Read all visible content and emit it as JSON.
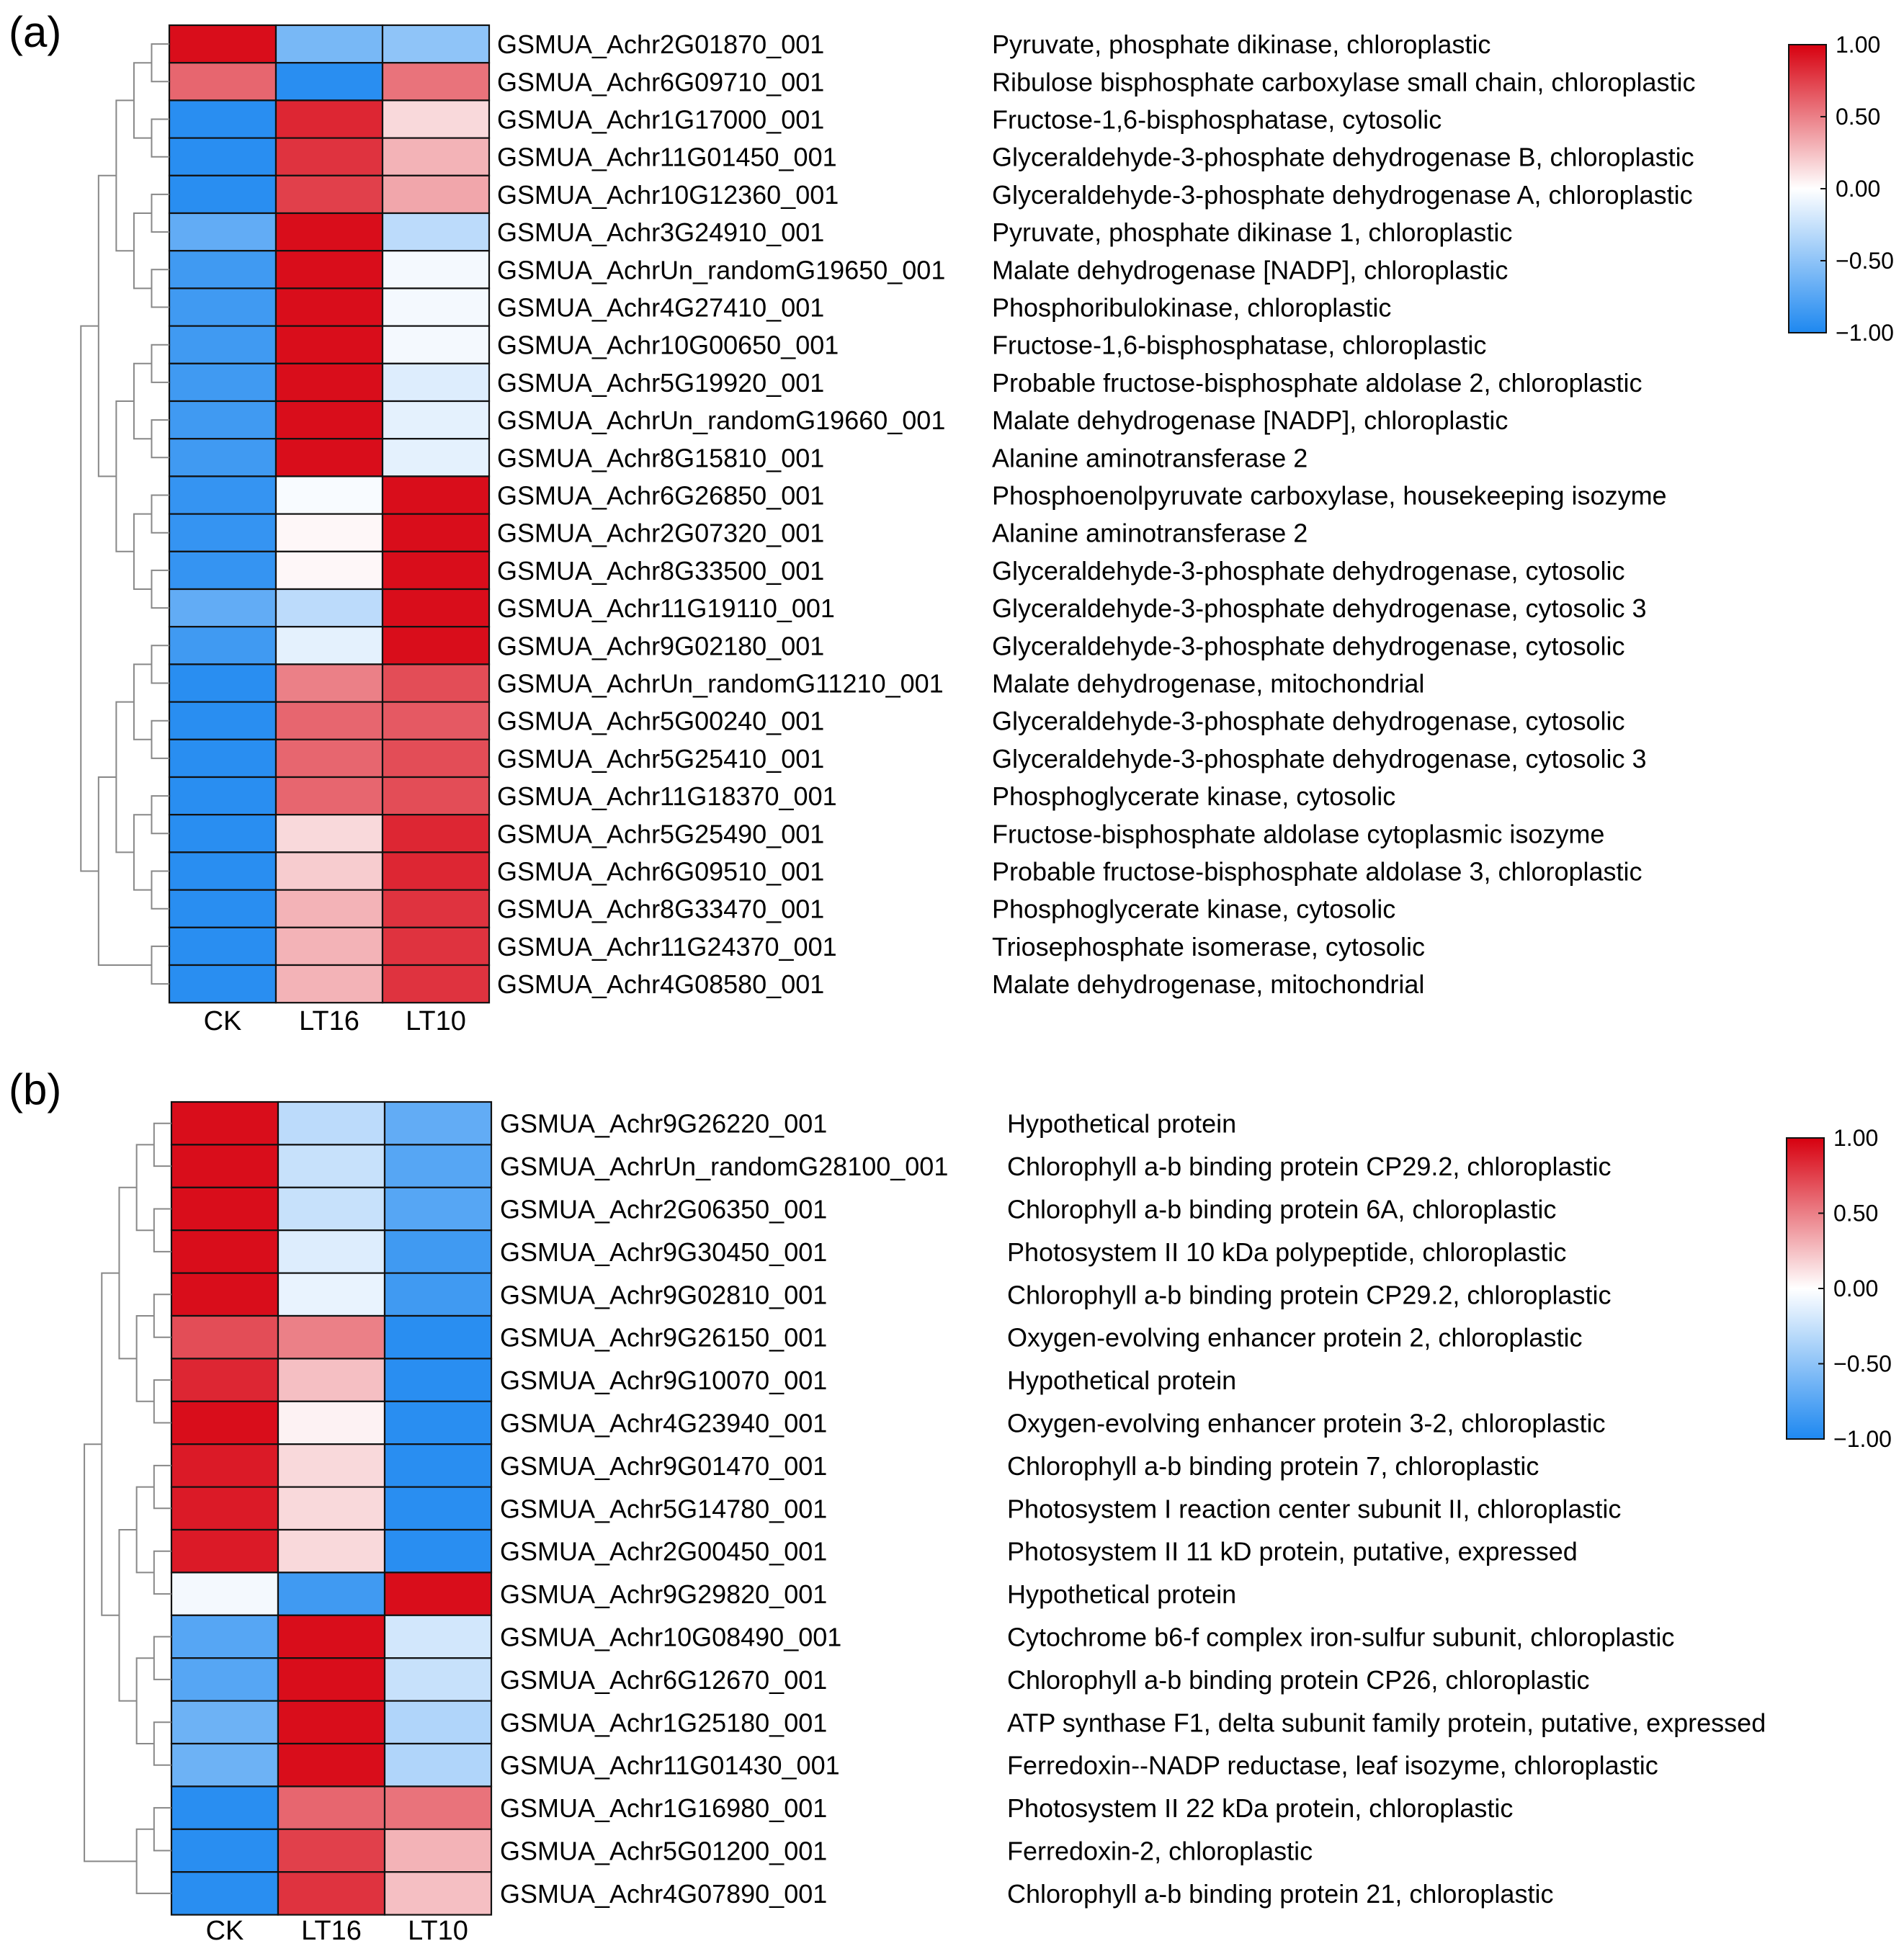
{
  "panels": [
    {
      "label": "(a)",
      "chart_data": {
        "type": "heatmap",
        "columns": [
          "CK",
          "LT16",
          "LT10"
        ],
        "rows": [
          {
            "gene": "GSMUA_Achr2G01870_001",
            "desc": "Pyruvate, phosphate dikinase, chloroplastic",
            "values": [
              0.95,
              -0.6,
              -0.5
            ]
          },
          {
            "gene": "GSMUA_Achr6G09710_001",
            "desc": "Ribulose bisphosphate carboxylase small chain, chloroplastic",
            "values": [
              0.6,
              -0.95,
              0.55
            ]
          },
          {
            "gene": "GSMUA_Achr1G17000_001",
            "desc": "Fructose-1,6-bisphosphatase, cytosolic",
            "values": [
              -0.95,
              0.85,
              0.15
            ]
          },
          {
            "gene": "GSMUA_Achr11G01450_001",
            "desc": "Glyceraldehyde-3-phosphate dehydrogenase B, chloroplastic",
            "values": [
              -0.95,
              0.8,
              0.3
            ]
          },
          {
            "gene": "GSMUA_Achr10G12360_001",
            "desc": "Glyceraldehyde-3-phosphate dehydrogenase A, chloroplastic",
            "values": [
              -0.95,
              0.75,
              0.35
            ]
          },
          {
            "gene": "GSMUA_Achr3G24910_001",
            "desc": "Pyruvate, phosphate dikinase 1, chloroplastic",
            "values": [
              -0.7,
              0.95,
              -0.3
            ]
          },
          {
            "gene": "GSMUA_AchrUn_randomG19650_001",
            "desc": "Malate dehydrogenase [NADP], chloroplastic",
            "values": [
              -0.85,
              0.95,
              -0.05
            ]
          },
          {
            "gene": "GSMUA_Achr4G27410_001",
            "desc": "Phosphoribulokinase, chloroplastic",
            "values": [
              -0.85,
              0.95,
              -0.05
            ]
          },
          {
            "gene": "GSMUA_Achr10G00650_001",
            "desc": "Fructose-1,6-bisphosphatase, chloroplastic",
            "values": [
              -0.85,
              0.95,
              -0.05
            ]
          },
          {
            "gene": "GSMUA_Achr5G19920_001",
            "desc": "Probable fructose-bisphosphate aldolase 2, chloroplastic",
            "values": [
              -0.85,
              0.95,
              -0.15
            ]
          },
          {
            "gene": "GSMUA_AchrUn_randomG19660_001",
            "desc": "Malate dehydrogenase [NADP], chloroplastic",
            "values": [
              -0.85,
              0.95,
              -0.12
            ]
          },
          {
            "gene": "GSMUA_Achr8G15810_001",
            "desc": "Alanine aminotransferase 2",
            "values": [
              -0.85,
              0.95,
              -0.12
            ]
          },
          {
            "gene": "GSMUA_Achr6G26850_001",
            "desc": "Phosphoenolpyruvate carboxylase, housekeeping isozyme",
            "values": [
              -0.9,
              -0.03,
              0.95
            ]
          },
          {
            "gene": "GSMUA_Achr2G07320_001",
            "desc": "Alanine aminotransferase 2",
            "values": [
              -0.9,
              0.03,
              0.95
            ]
          },
          {
            "gene": "GSMUA_Achr8G33500_001",
            "desc": "Glyceraldehyde-3-phosphate dehydrogenase, cytosolic",
            "values": [
              -0.9,
              0.03,
              0.95
            ]
          },
          {
            "gene": "GSMUA_Achr11G19110_001",
            "desc": "Glyceraldehyde-3-phosphate dehydrogenase, cytosolic 3",
            "values": [
              -0.7,
              -0.3,
              0.95
            ]
          },
          {
            "gene": "GSMUA_Achr9G02180_001",
            "desc": "Glyceraldehyde-3-phosphate dehydrogenase, cytosolic",
            "values": [
              -0.85,
              -0.12,
              0.95
            ]
          },
          {
            "gene": "GSMUA_AchrUn_randomG11210_001",
            "desc": "Malate dehydrogenase, mitochondrial",
            "values": [
              -0.95,
              0.5,
              0.7
            ]
          },
          {
            "gene": "GSMUA_Achr5G00240_001",
            "desc": "Glyceraldehyde-3-phosphate dehydrogenase, cytosolic",
            "values": [
              -0.95,
              0.6,
              0.65
            ]
          },
          {
            "gene": "GSMUA_Achr5G25410_001",
            "desc": "Glyceraldehyde-3-phosphate dehydrogenase, cytosolic 3",
            "values": [
              -0.95,
              0.6,
              0.7
            ]
          },
          {
            "gene": "GSMUA_Achr11G18370_001",
            "desc": "Phosphoglycerate kinase, cytosolic",
            "values": [
              -0.95,
              0.6,
              0.7
            ]
          },
          {
            "gene": "GSMUA_Achr5G25490_001",
            "desc": "Fructose-bisphosphate aldolase cytoplasmic isozyme",
            "values": [
              -0.95,
              0.15,
              0.85
            ]
          },
          {
            "gene": "GSMUA_Achr6G09510_001",
            "desc": "Probable fructose-bisphosphate aldolase 3, chloroplastic",
            "values": [
              -0.95,
              0.2,
              0.85
            ]
          },
          {
            "gene": "GSMUA_Achr8G33470_001",
            "desc": "Phosphoglycerate kinase, cytosolic",
            "values": [
              -0.95,
              0.3,
              0.8
            ]
          },
          {
            "gene": "GSMUA_Achr11G24370_001",
            "desc": "Triosephosphate isomerase, cytosolic",
            "values": [
              -0.95,
              0.3,
              0.8
            ]
          },
          {
            "gene": "GSMUA_Achr4G08580_001",
            "desc": "Malate dehydrogenase, mitochondrial",
            "values": [
              -0.95,
              0.3,
              0.8
            ]
          }
        ],
        "colorbar": {
          "ticks": [
            "1.00",
            "0.50",
            "0.00",
            "−0.50",
            "−1.00"
          ],
          "range": [
            -1,
            1
          ],
          "colors": {
            "low": "#1e88f0",
            "mid": "#ffffff",
            "high": "#d7000f"
          }
        }
      }
    },
    {
      "label": "(b)",
      "chart_data": {
        "type": "heatmap",
        "columns": [
          "CK",
          "LT16",
          "LT10"
        ],
        "rows": [
          {
            "gene": "GSMUA_Achr9G26220_001",
            "desc": "Hypothetical protein",
            "values": [
              0.95,
              -0.3,
              -0.7
            ]
          },
          {
            "gene": "GSMUA_AchrUn_randomG28100_001",
            "desc": "Chlorophyll a-b binding protein CP29.2, chloroplastic",
            "values": [
              0.95,
              -0.25,
              -0.75
            ]
          },
          {
            "gene": "GSMUA_Achr2G06350_001",
            "desc": "Chlorophyll a-b binding protein 6A, chloroplastic",
            "values": [
              0.95,
              -0.25,
              -0.75
            ]
          },
          {
            "gene": "GSMUA_Achr9G30450_001",
            "desc": "Photosystem II 10 kDa polypeptide, chloroplastic",
            "values": [
              0.95,
              -0.15,
              -0.85
            ]
          },
          {
            "gene": "GSMUA_Achr9G02810_001",
            "desc": "Chlorophyll a-b binding protein CP29.2, chloroplastic",
            "values": [
              0.95,
              -0.1,
              -0.85
            ]
          },
          {
            "gene": "GSMUA_Achr9G26150_001",
            "desc": "Oxygen-evolving enhancer protein 2, chloroplastic",
            "values": [
              0.7,
              0.5,
              -0.95
            ]
          },
          {
            "gene": "GSMUA_Achr9G10070_001",
            "desc": "Hypothetical protein",
            "values": [
              0.85,
              0.25,
              -0.95
            ]
          },
          {
            "gene": "GSMUA_Achr4G23940_001",
            "desc": "Oxygen-evolving enhancer protein 3-2, chloroplastic",
            "values": [
              0.95,
              0.05,
              -0.95
            ]
          },
          {
            "gene": "GSMUA_Achr9G01470_001",
            "desc": "Chlorophyll a-b binding protein 7, chloroplastic",
            "values": [
              0.9,
              0.15,
              -0.95
            ]
          },
          {
            "gene": "GSMUA_Achr5G14780_001",
            "desc": "Photosystem I reaction center subunit II, chloroplastic",
            "values": [
              0.9,
              0.15,
              -0.95
            ]
          },
          {
            "gene": "GSMUA_Achr2G00450_001",
            "desc": "Photosystem II 11 kD protein, putative, expressed",
            "values": [
              0.9,
              0.15,
              -0.95
            ]
          },
          {
            "gene": "GSMUA_Achr9G29820_001",
            "desc": "Hypothetical protein",
            "values": [
              -0.05,
              -0.85,
              0.95
            ]
          },
          {
            "gene": "GSMUA_Achr10G08490_001",
            "desc": "Cytochrome b6-f complex iron-sulfur subunit, chloroplastic",
            "values": [
              -0.75,
              0.95,
              -0.2
            ]
          },
          {
            "gene": "GSMUA_Achr6G12670_001",
            "desc": "Chlorophyll a-b binding protein CP26, chloroplastic",
            "values": [
              -0.75,
              0.95,
              -0.25
            ]
          },
          {
            "gene": "GSMUA_Achr1G25180_001",
            "desc": "ATP synthase F1, delta subunit family protein, putative, expressed",
            "values": [
              -0.65,
              0.95,
              -0.35
            ]
          },
          {
            "gene": "GSMUA_Achr11G01430_001",
            "desc": "Ferredoxin--NADP reductase, leaf isozyme, chloroplastic",
            "values": [
              -0.65,
              0.95,
              -0.35
            ]
          },
          {
            "gene": "GSMUA_Achr1G16980_001",
            "desc": "Photosystem II 22 kDa protein, chloroplastic",
            "values": [
              -0.95,
              0.6,
              0.55
            ]
          },
          {
            "gene": "GSMUA_Achr5G01200_001",
            "desc": "Ferredoxin-2, chloroplastic",
            "values": [
              -0.95,
              0.75,
              0.3
            ]
          },
          {
            "gene": "GSMUA_Achr4G07890_001",
            "desc": "Chlorophyll a-b binding protein 21, chloroplastic",
            "values": [
              -0.95,
              0.8,
              0.25
            ]
          }
        ],
        "colorbar": {
          "ticks": [
            "1.00",
            "0.50",
            "0.00",
            "−0.50",
            "−1.00"
          ],
          "range": [
            -1,
            1
          ],
          "colors": {
            "low": "#1e88f0",
            "mid": "#ffffff",
            "high": "#d7000f"
          }
        }
      }
    }
  ]
}
